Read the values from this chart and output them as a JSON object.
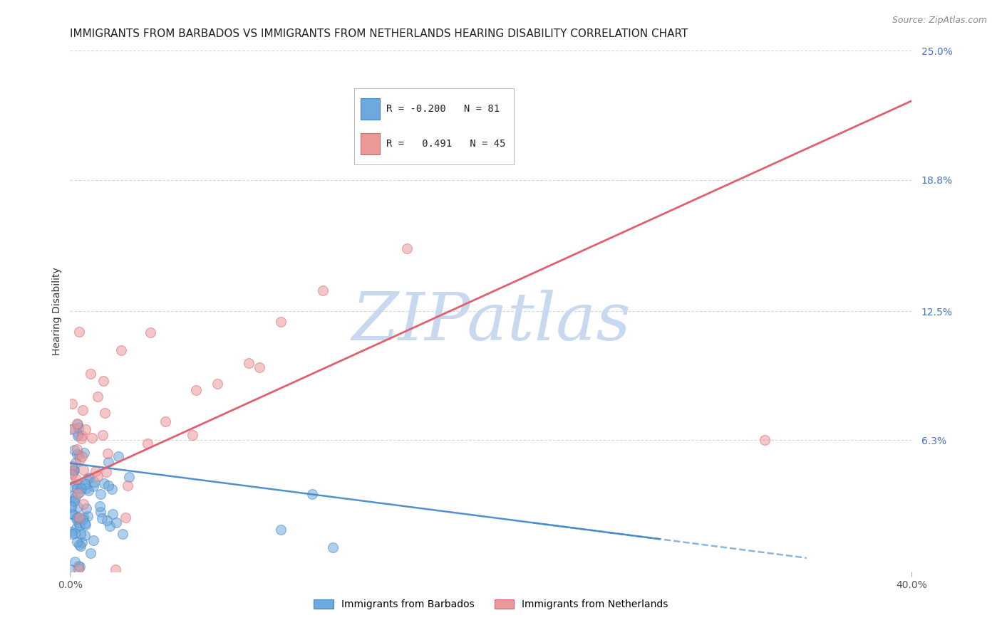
{
  "title": "IMMIGRANTS FROM BARBADOS VS IMMIGRANTS FROM NETHERLANDS HEARING DISABILITY CORRELATION CHART",
  "source": "Source: ZipAtlas.com",
  "xlabel_barbados": "Immigrants from Barbados",
  "xlabel_netherlands": "Immigrants from Netherlands",
  "ylabel": "Hearing Disability",
  "xlim": [
    0.0,
    0.4
  ],
  "ylim": [
    0.0,
    0.25
  ],
  "ytick_right_labels": [
    "25.0%",
    "18.8%",
    "12.5%",
    "6.3%"
  ],
  "ytick_right_values": [
    0.25,
    0.188,
    0.125,
    0.063
  ],
  "barbados_R": -0.2,
  "barbados_N": 81,
  "netherlands_R": 0.491,
  "netherlands_N": 45,
  "barbados_color": "#6fa8dc",
  "netherlands_color": "#ea9999",
  "trendline_barbados_color": "#3d85c8",
  "trendline_netherlands_color": "#e06070",
  "background_color": "#ffffff",
  "grid_color": "#cccccc",
  "title_fontsize": 11,
  "source_fontsize": 9,
  "label_fontsize": 10,
  "tick_fontsize": 10
}
